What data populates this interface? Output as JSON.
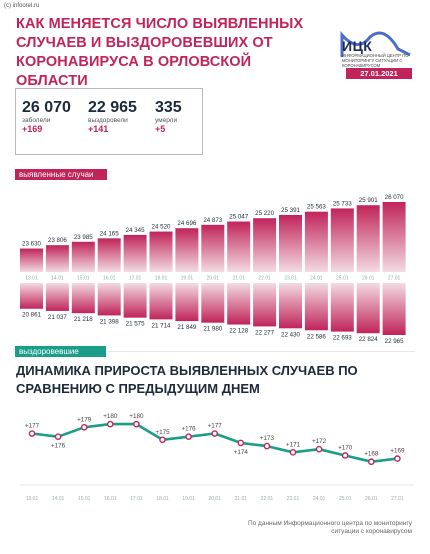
{
  "watermark": "(c) infoorel.ru",
  "title": "КАК МЕНЯЕТСЯ ЧИСЛО ВЫЯВЛЕННЫХ СЛУЧАЕВ И ВЫЗДОРОВЕВШИХ ОТ КОРОНАВИРУСА В ОРЛОВСКОЙ ОБЛАСТИ",
  "logo": {
    "name": "ИЦК",
    "subtitle": "ИНФОРМАЦИОННЫЙ ЦЕНТР ПО МОНИТОРИНГУ СИТУАЦИИ С КОРОНАВИРУСОМ",
    "date": "27.01.2021"
  },
  "stats": [
    {
      "value": "26 070",
      "label": "заболели",
      "delta": "+169"
    },
    {
      "value": "22 965",
      "label": "выздоровели",
      "delta": "+141"
    },
    {
      "value": "335",
      "label": "умерли",
      "delta": "+5"
    }
  ],
  "labels": {
    "detected": "выявленные случаи",
    "recovered": "выздоровевшие"
  },
  "subtitle": "ДИНАМИКА ПРИРОСТА ВЫЯВЛЕННЫХ СЛУЧАЕВ ПО СРАВНЕНИЮ С ПРЕДЫДУЩИМ ДНЕМ",
  "footer": "По данным Информационного центра по мониторингу ситуации с коронавирусом",
  "colors": {
    "pink": "#c0245a",
    "teal": "#1a9e8a",
    "bar_light": "#f3dbe2",
    "dark": "#1d2a3a"
  },
  "chart_data": [
    {
      "type": "bar",
      "series_name": "выявленные случаи",
      "categories": [
        "13.01",
        "14.01",
        "15.01",
        "16.01",
        "17.01",
        "18.01",
        "19.01",
        "20.01",
        "21.01",
        "22.01",
        "23.01",
        "24.01",
        "25.01",
        "26.01",
        "27.01"
      ],
      "values": [
        23630,
        23806,
        23985,
        24165,
        24345,
        24520,
        24696,
        24873,
        25047,
        25220,
        25391,
        25563,
        25733,
        25901,
        26070
      ],
      "labels": [
        "23 630",
        "23 806",
        "23 985",
        "24 165",
        "24 345",
        "24 520",
        "24 696",
        "24 873",
        "25 047",
        "25 220",
        "25 391",
        "25 563",
        "25 733",
        "25 901",
        "26 070"
      ]
    },
    {
      "type": "bar",
      "series_name": "выздоровевшие",
      "categories": [
        "13.01",
        "14.01",
        "15.01",
        "16.01",
        "17.01",
        "18.01",
        "19.01",
        "20.01",
        "21.01",
        "22.01",
        "23.01",
        "24.01",
        "25.01",
        "26.01",
        "27.01"
      ],
      "values": [
        20861,
        21037,
        21218,
        21398,
        21575,
        21714,
        21849,
        21980,
        22128,
        22277,
        22430,
        22586,
        22693,
        22824,
        22965
      ],
      "labels": [
        "20 861",
        "21 037",
        "21 218",
        "21 398",
        "21 575",
        "21 714",
        "21 849",
        "21 980",
        "22 128",
        "22 277",
        "22 430",
        "22 586",
        "22 693",
        "22 824",
        "22 965"
      ]
    },
    {
      "type": "line",
      "title": "ДИНАМИКА ПРИРОСТА ВЫЯВЛЕННЫХ СЛУЧАЕВ ПО СРАВНЕНИЮ С ПРЕДЫДУЩИМ ДНЕМ",
      "x": [
        "13.01",
        "14.01",
        "15.01",
        "16.01",
        "17.01",
        "18.01",
        "19.01",
        "20.01",
        "21.01",
        "22.01",
        "23.01",
        "24.01",
        "25.01",
        "26.01",
        "27.01"
      ],
      "values": [
        177,
        176,
        179,
        180,
        180,
        175,
        176,
        177,
        174,
        173,
        171,
        172,
        170,
        168,
        169
      ],
      "labels": [
        "+177",
        "+176",
        "+179",
        "+180",
        "+180",
        "+175",
        "+176",
        "+177",
        "+174",
        "+173",
        "+171",
        "+172",
        "+170",
        "+168",
        "+169"
      ]
    }
  ]
}
